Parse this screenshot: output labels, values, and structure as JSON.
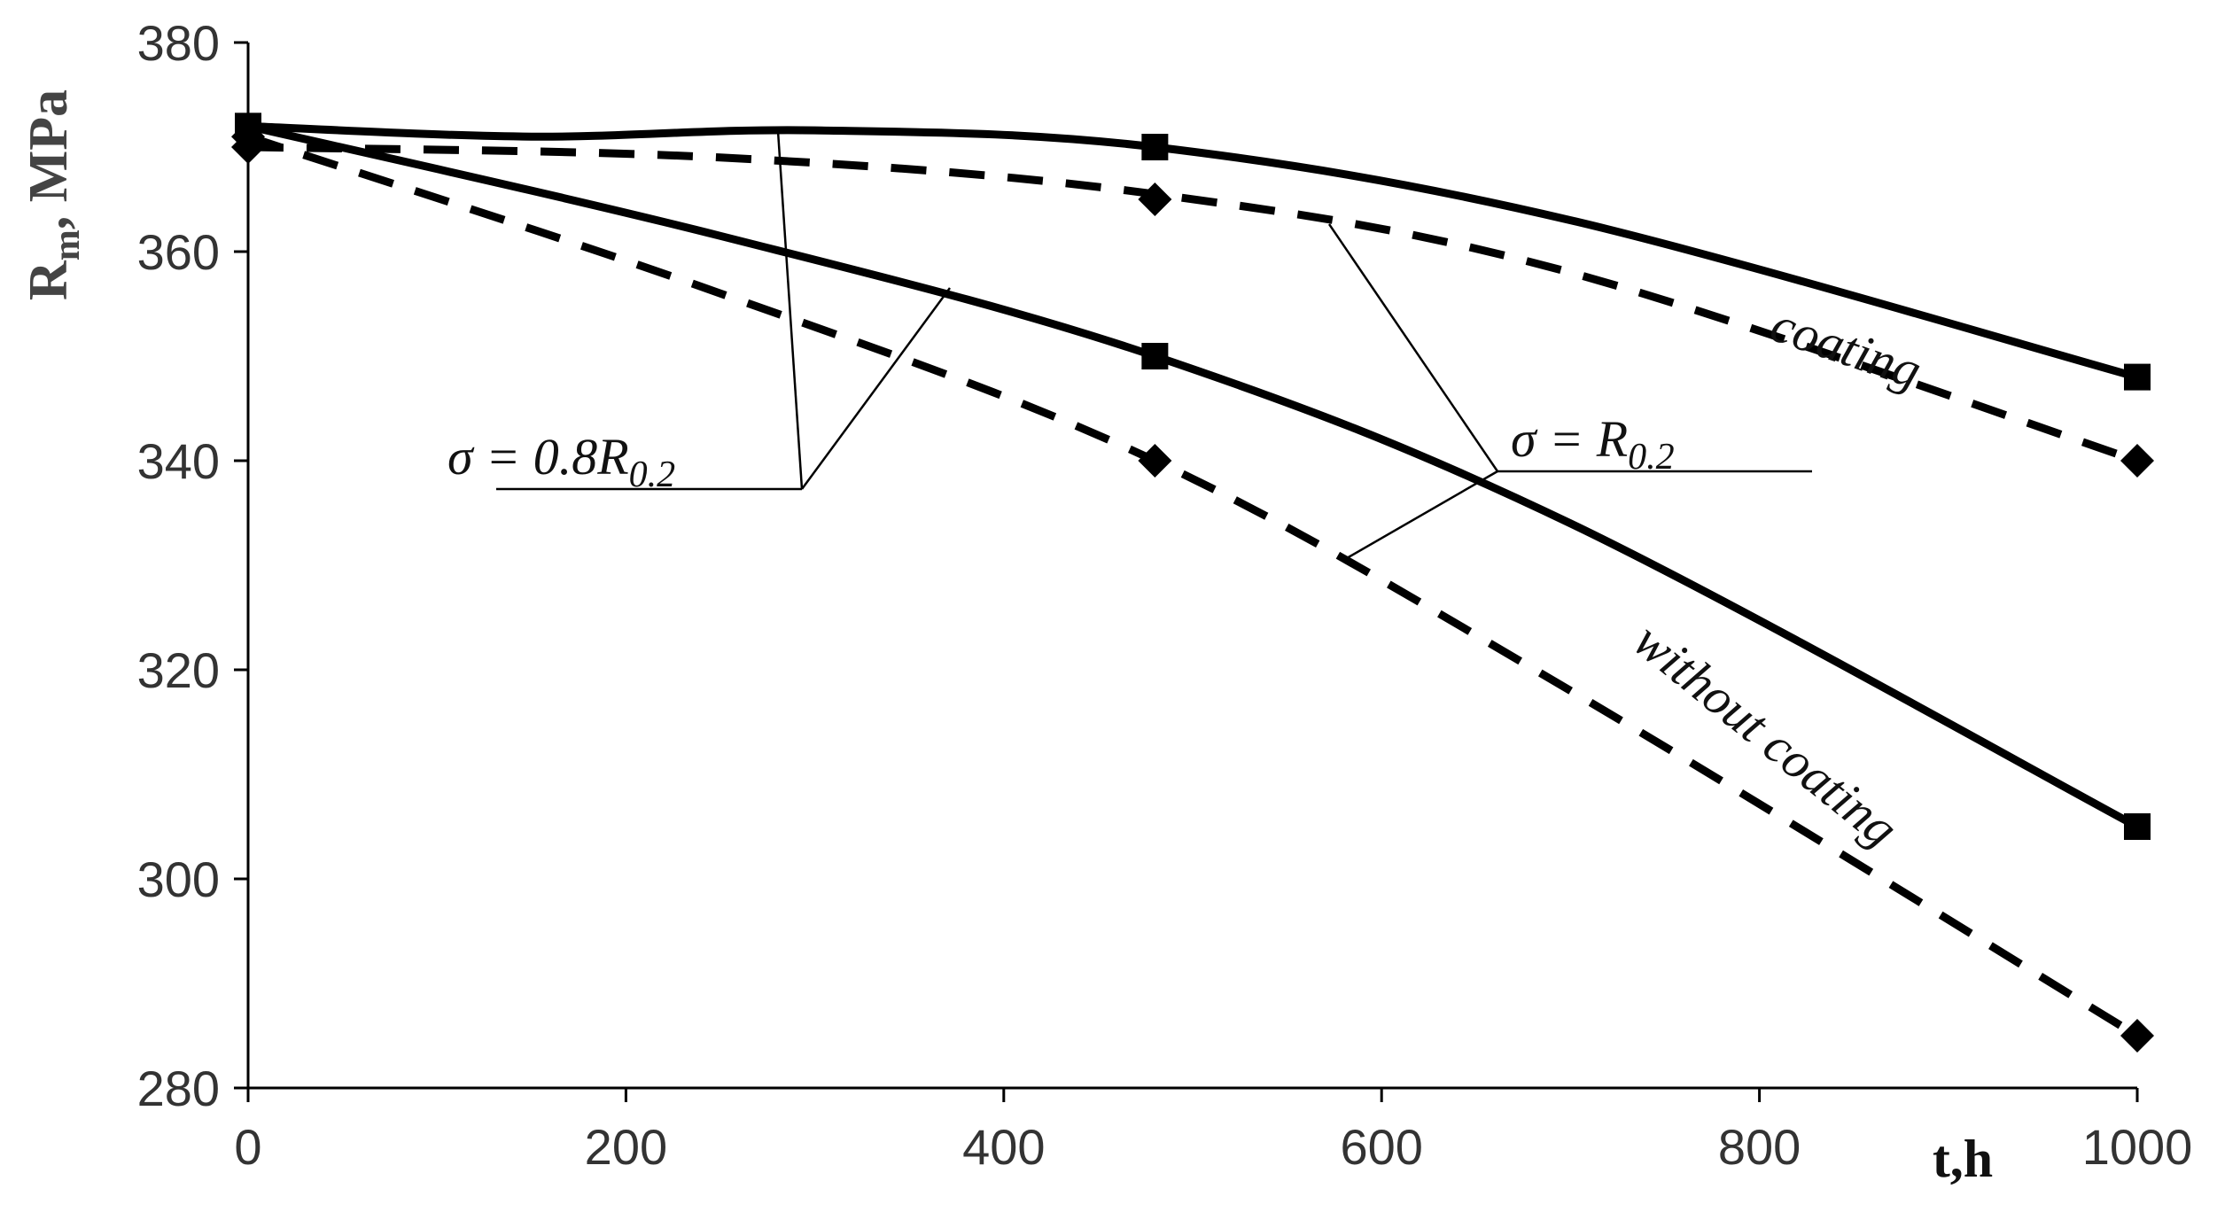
{
  "chart_data": {
    "type": "line",
    "xlabel": "t,h",
    "ylabel": "Rm, MPa",
    "ylabel_main": "R",
    "ylabel_sub": "m",
    "ylabel_rest": ", MPa",
    "xlim": [
      0,
      1000
    ],
    "ylim": [
      280,
      380
    ],
    "xticks": [
      0,
      200,
      400,
      600,
      800,
      1000
    ],
    "yticks": [
      280,
      300,
      320,
      340,
      360,
      380
    ],
    "grid": false,
    "series": [
      {
        "key": "coating_R02",
        "style": "solid",
        "marker": "square",
        "x": [
          0,
          480,
          1000
        ],
        "y": [
          372,
          370,
          348
        ],
        "curve_y": [
          {
            "x": 0,
            "y": 372
          },
          {
            "x": 150,
            "y": 371
          },
          {
            "x": 300,
            "y": 371.6
          },
          {
            "x": 480,
            "y": 370
          },
          {
            "x": 700,
            "y": 363
          },
          {
            "x": 1000,
            "y": 348
          }
        ]
      },
      {
        "key": "coating_08R02",
        "style": "dashed",
        "marker": "diamond",
        "x": [
          0,
          480,
          1000
        ],
        "y": [
          370,
          365,
          340
        ],
        "curve_y": [
          {
            "x": 0,
            "y": 370
          },
          {
            "x": 250,
            "y": 369
          },
          {
            "x": 480,
            "y": 365.5
          },
          {
            "x": 700,
            "y": 358
          },
          {
            "x": 1000,
            "y": 340
          }
        ]
      },
      {
        "key": "without_R02",
        "style": "solid",
        "marker": "square",
        "x": [
          0,
          480,
          1000
        ],
        "y": [
          372,
          350,
          305
        ],
        "curve_y": [
          {
            "x": 0,
            "y": 372
          },
          {
            "x": 250,
            "y": 361.5
          },
          {
            "x": 480,
            "y": 350
          },
          {
            "x": 700,
            "y": 334
          },
          {
            "x": 1000,
            "y": 305
          }
        ]
      },
      {
        "key": "without_08R02",
        "style": "dashed",
        "marker": "diamond",
        "x": [
          0,
          480,
          1000
        ],
        "y": [
          371,
          340,
          285
        ],
        "curve_y": [
          {
            "x": 0,
            "y": 371
          },
          {
            "x": 250,
            "y": 356
          },
          {
            "x": 480,
            "y": 340
          },
          {
            "x": 700,
            "y": 318
          },
          {
            "x": 1000,
            "y": 285
          }
        ]
      }
    ],
    "annotations": {
      "coating": "coating",
      "without_coating": "without coating",
      "sigma_08": "σ = 0.8R",
      "sigma_08_sub": "0.2",
      "sigma_1": "σ = R",
      "sigma_1_sub": "0.2"
    },
    "colors": {
      "line": "#000000",
      "axis": "#000000",
      "tick_text": "#333333"
    }
  }
}
